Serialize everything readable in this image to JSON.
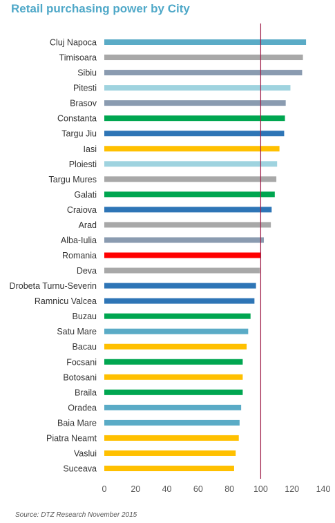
{
  "chart_data": {
    "type": "bar",
    "orientation": "horizontal",
    "title": "Retail purchasing power by City",
    "categories": [
      "Cluj Napoca",
      "Timisoara",
      "Sibiu",
      "Pitesti",
      "Brasov",
      "Constanta",
      "Targu Jiu",
      "Iasi",
      "Ploiesti",
      "Targu Mures",
      "Galati",
      "Craiova",
      "Arad",
      "Alba-Iulia",
      "Romania",
      "Deva",
      "Drobeta Turnu-Severin",
      "Ramnicu Valcea",
      "Buzau",
      "Satu Mare",
      "Bacau",
      "Focsani",
      "Botosani",
      "Braila",
      "Oradea",
      "Baia Mare",
      "Piatra Neamt",
      "Vaslui",
      "Suceava"
    ],
    "values": [
      129,
      127,
      126.5,
      119,
      116,
      115.5,
      115,
      112,
      110.5,
      110,
      109,
      107,
      106.5,
      102,
      100,
      99.5,
      97,
      96,
      93.5,
      92,
      91,
      88.5,
      88.5,
      88.5,
      87.5,
      86.5,
      86,
      84,
      83
    ],
    "colors": [
      "#5aabc6",
      "#a8a8a8",
      "#8a9bb0",
      "#9fd3df",
      "#8a9bb0",
      "#00a650",
      "#2e75b6",
      "#ffc000",
      "#9fd3df",
      "#a8a8a8",
      "#00a650",
      "#2e75b6",
      "#a8a8a8",
      "#8a9bb0",
      "#ff0000",
      "#a8a8a8",
      "#2e75b6",
      "#2e75b6",
      "#00a650",
      "#5aabc6",
      "#ffc000",
      "#00a650",
      "#ffc000",
      "#00a650",
      "#5aabc6",
      "#5aabc6",
      "#ffc000",
      "#ffc000",
      "#ffc000"
    ],
    "xlim": [
      0,
      140
    ],
    "xticks": [
      "0",
      "20",
      "40",
      "60",
      "80",
      "100",
      "120",
      "140"
    ],
    "reference_line": 100,
    "reference_line_color": "#a0204a",
    "grid": false,
    "xlabel": "",
    "ylabel": ""
  },
  "source": "Source: DTZ Research November 2015"
}
